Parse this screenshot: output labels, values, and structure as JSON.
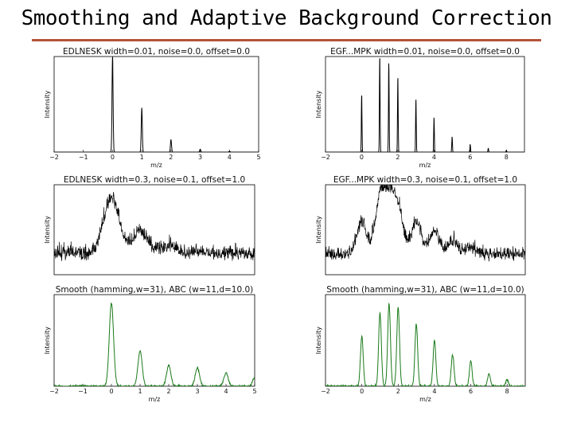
{
  "slide": {
    "title": "Smoothing and Adaptive Background Correction"
  },
  "chart_data": [
    {
      "type": "line",
      "title": "EDLNESK width=0.01, noise=0.0, offset=0.0",
      "xlabel": "m/z",
      "ylabel": "Intensity",
      "xlim": [
        -2,
        5
      ],
      "ylim": [
        0,
        1
      ],
      "xticks": [
        "−2",
        "−1",
        "0",
        "1",
        "2",
        "3",
        "4",
        "5"
      ],
      "color": "#000000",
      "peaks": [
        [
          0,
          1.0
        ],
        [
          1,
          0.46
        ],
        [
          2,
          0.13
        ],
        [
          3,
          0.03
        ],
        [
          4,
          0.01
        ]
      ],
      "width": 0.01,
      "noise": 0.0,
      "offset": 0.0
    },
    {
      "type": "line",
      "title": "EGF...MPK width=0.01, noise=0.0, offset=0.0",
      "xlabel": "m/z",
      "ylabel": "Intensity",
      "xlim": [
        -2,
        9
      ],
      "ylim": [
        0,
        1
      ],
      "xticks": [
        "−2",
        "0",
        "2",
        "4",
        "6",
        "8"
      ],
      "color": "#000000",
      "peaks": [
        [
          0,
          0.6
        ],
        [
          1,
          1.0
        ],
        [
          1.5,
          0.93
        ],
        [
          2,
          0.78
        ],
        [
          3,
          0.55
        ],
        [
          4,
          0.36
        ],
        [
          5,
          0.16
        ],
        [
          6,
          0.08
        ],
        [
          7,
          0.04
        ],
        [
          8,
          0.02
        ]
      ],
      "width": 0.01,
      "noise": 0.0,
      "offset": 0.0
    },
    {
      "type": "line",
      "title": "EDLNESK width=0.3, noise=0.1, offset=1.0",
      "xlabel": "",
      "ylabel": "Intensity",
      "xlim": [
        -2,
        5
      ],
      "ylim": [
        0,
        1.35
      ],
      "xticks": [],
      "color": "#000000",
      "peaks": [
        [
          0,
          0.85
        ],
        [
          1,
          0.35
        ],
        [
          2,
          0.12
        ],
        [
          3,
          0.04
        ]
      ],
      "width": 0.3,
      "noise": 0.1,
      "offset": 1.0
    },
    {
      "type": "line",
      "title": "EGF...MPK width=0.3, noise=0.1, offset=1.0",
      "xlabel": "",
      "ylabel": "Intensity",
      "xlim": [
        -2,
        9
      ],
      "ylim": [
        0,
        1.35
      ],
      "xticks": [],
      "color": "#000000",
      "peaks": [
        [
          0,
          0.5
        ],
        [
          1,
          0.8
        ],
        [
          1.5,
          0.75
        ],
        [
          2,
          0.65
        ],
        [
          3,
          0.5
        ],
        [
          4,
          0.35
        ],
        [
          5,
          0.2
        ],
        [
          6,
          0.1
        ]
      ],
      "width": 0.3,
      "noise": 0.1,
      "offset": 1.0
    },
    {
      "type": "line",
      "title": "Smooth (hamming,w=31), ABC (w=11,d=10.0)",
      "xlabel": "m/z",
      "ylabel": "Intensity",
      "xlim": [
        -2,
        5
      ],
      "ylim": [
        0,
        1.1
      ],
      "xticks": [
        "−2",
        "−1",
        "0",
        "1",
        "2",
        "3",
        "4",
        "5"
      ],
      "color": "#1a7a1a",
      "peaks": [
        [
          0,
          1.0
        ],
        [
          1,
          0.42
        ],
        [
          2,
          0.25
        ],
        [
          3,
          0.22
        ],
        [
          4,
          0.16
        ],
        [
          5,
          0.1
        ]
      ]
    },
    {
      "type": "line",
      "title": "Smooth (hamming,w=31), ABC (w=11,d=10.0)",
      "xlabel": "m/z",
      "ylabel": "Intensity",
      "xlim": [
        -2,
        9
      ],
      "ylim": [
        0,
        1.1
      ],
      "xticks": [
        "−2",
        "0",
        "2",
        "4",
        "6",
        "8"
      ],
      "color": "#1a7a1a",
      "peaks": [
        [
          0,
          0.6
        ],
        [
          1,
          0.88
        ],
        [
          1.5,
          1.0
        ],
        [
          2,
          0.95
        ],
        [
          3,
          0.75
        ],
        [
          4,
          0.55
        ],
        [
          5,
          0.38
        ],
        [
          6,
          0.3
        ],
        [
          7,
          0.15
        ],
        [
          8,
          0.08
        ]
      ]
    }
  ]
}
